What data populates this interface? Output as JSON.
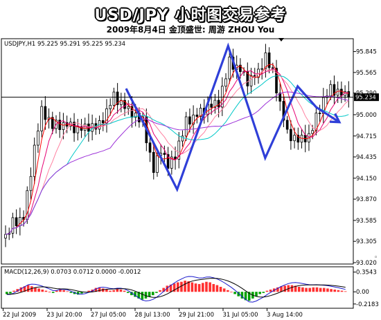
{
  "header": {
    "title": "USD/JPY  小时图交易参考",
    "subtitle": "2009年8月4日   金顶盛世: 周游 ZHOU You"
  },
  "chart_data": {
    "type": "candlestick",
    "symbol_header": "USDJPY,H1  95.225 95.291 95.225 95.234",
    "price_axis": {
      "min": 93.02,
      "max": 95.98,
      "ticks": [
        "95.845",
        "95.565",
        "95.290",
        "95.000",
        "94.715",
        "94.435",
        "94.150",
        "93.870",
        "93.585",
        "93.305",
        "93.020"
      ],
      "current_price": 95.234,
      "current_label": "95.234"
    },
    "time_axis": {
      "labels": [
        "22 Jul 2009",
        "23 Jul 20:00",
        "27 Jul 05:00",
        "28 Jul 13:00",
        "29 Jul 21:00",
        "31 Jul 05:00",
        "3 Aug 14:00"
      ]
    },
    "candles": {
      "count": 96,
      "anchors": [
        [
          0,
          93.35
        ],
        [
          2,
          93.55
        ],
        [
          5,
          93.62
        ],
        [
          8,
          94.55
        ],
        [
          10,
          95.05
        ],
        [
          13,
          94.85
        ],
        [
          17,
          94.87
        ],
        [
          20,
          94.8
        ],
        [
          26,
          94.85
        ],
        [
          30,
          95.25
        ],
        [
          34,
          95.05
        ],
        [
          38,
          94.9
        ],
        [
          41,
          94.25
        ],
        [
          43,
          94.55
        ],
        [
          45,
          94.3
        ],
        [
          47,
          94.45
        ],
        [
          50,
          94.9
        ],
        [
          53,
          95.0
        ],
        [
          56,
          95.1
        ],
        [
          59,
          95.15
        ],
        [
          62,
          95.7
        ],
        [
          65,
          95.6
        ],
        [
          67,
          95.45
        ],
        [
          70,
          95.55
        ],
        [
          72,
          95.78
        ],
        [
          74,
          95.55
        ],
        [
          77,
          94.95
        ],
        [
          78,
          94.75
        ],
        [
          81,
          94.65
        ],
        [
          84,
          94.7
        ],
        [
          86,
          94.95
        ],
        [
          88,
          95.2
        ],
        [
          90,
          95.35
        ],
        [
          92,
          95.3
        ],
        [
          94,
          95.25
        ],
        [
          95,
          95.234
        ]
      ],
      "noise": [
        0.08,
        -0.06,
        0.12,
        -0.1,
        0.05,
        -0.04,
        0.09,
        -0.11,
        0.07,
        -0.03,
        0.1,
        -0.08
      ]
    },
    "moving_averages": [
      {
        "color": "#ff0000",
        "period": 4
      },
      {
        "color": "#e60073",
        "period": 7
      },
      {
        "color": "#ff80a0",
        "period": 11
      },
      {
        "color": "#00c8c8",
        "period": 18
      },
      {
        "color": "#9c30d8",
        "period": 30
      }
    ],
    "trendline": {
      "color": "#2f3fd8",
      "points": [
        [
          52,
          95.35
        ],
        [
          74,
          94.0
        ],
        [
          96,
          95.92
        ],
        [
          112,
          94.42
        ],
        [
          126,
          95.38
        ],
        [
          134,
          95.1
        ]
      ],
      "arrow_target": [
        144,
        94.9
      ]
    },
    "macd": {
      "label": "MACD(12,26,9) 0.0703 0.0712 0.0000 -0.0012",
      "axis_ticks": [
        "0.3543",
        "0.00",
        "-0.2183"
      ],
      "range": [
        -0.27,
        0.4
      ],
      "histogram": [
        -0.04,
        -0.03,
        0.02,
        0.05,
        0.08,
        0.1,
        0.12,
        0.1,
        0.08,
        0.06,
        0.04,
        0.02,
        0.0,
        -0.02,
        0.02,
        0.05,
        0.03,
        0.01,
        -0.02,
        -0.04,
        -0.05,
        -0.03,
        -0.01,
        0.02,
        0.04,
        0.07,
        0.08,
        0.06,
        0.04,
        0.02,
        0.03,
        0.05,
        0.04,
        0.02,
        -0.02,
        -0.06,
        -0.09,
        -0.12,
        -0.14,
        -0.12,
        -0.09,
        -0.06,
        -0.02,
        0.03,
        0.07,
        0.11,
        0.13,
        0.15,
        0.17,
        0.18,
        0.2,
        0.19,
        0.17,
        0.15,
        0.14,
        0.16,
        0.18,
        0.17,
        0.14,
        0.12,
        0.09,
        0.06,
        0.03,
        0.0,
        -0.04,
        -0.08,
        -0.12,
        -0.15,
        -0.16,
        -0.12,
        -0.08,
        -0.04,
        -0.02,
        0.02,
        0.04,
        0.06,
        0.08,
        0.1,
        0.11,
        0.12,
        0.12,
        0.11,
        0.09,
        0.08,
        0.07,
        0.07,
        0.08,
        0.08,
        0.07,
        0.07,
        0.06,
        0.05,
        0.04,
        0.03,
        0.02,
        0.01
      ],
      "hist_colors": {
        "up": "#ff3030",
        "down": "#00a000"
      },
      "line_colors": {
        "macd": "#1a1acc",
        "signal": "#000000"
      }
    }
  }
}
